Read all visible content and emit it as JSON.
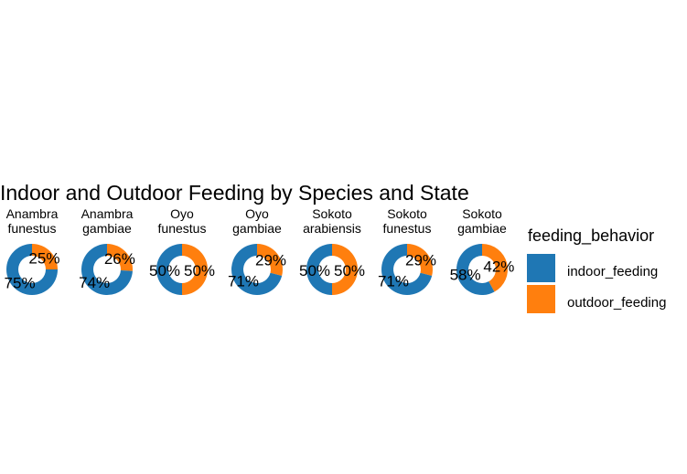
{
  "chart_data": {
    "type": "pie",
    "title": "Indoor and Outdoor Feeding by Species and State",
    "legend": {
      "title": "feeding_behavior",
      "position": "right",
      "entries": [
        "indoor_feeding",
        "outdoor_feeding"
      ]
    },
    "colors": {
      "indoor_feeding": "#1f77b4",
      "outdoor_feeding": "#ff7f0e"
    },
    "facets": [
      {
        "label": [
          "Anambra",
          "funestus"
        ],
        "indoor": 75,
        "outdoor": 25,
        "indoor_label": "75%",
        "outdoor_label": "25%"
      },
      {
        "label": [
          "Anambra",
          "gambiae"
        ],
        "indoor": 74,
        "outdoor": 26,
        "indoor_label": "74%",
        "outdoor_label": "26%"
      },
      {
        "label": [
          "Oyo",
          "funestus"
        ],
        "indoor": 50,
        "outdoor": 50,
        "indoor_label": "50%",
        "outdoor_label": "50%"
      },
      {
        "label": [
          "Oyo",
          "gambiae"
        ],
        "indoor": 71,
        "outdoor": 29,
        "indoor_label": "71%",
        "outdoor_label": "29%"
      },
      {
        "label": [
          "Sokoto",
          "arabiensis"
        ],
        "indoor": 50,
        "outdoor": 50,
        "indoor_label": "50%",
        "outdoor_label": "50%"
      },
      {
        "label": [
          "Sokoto",
          "funestus"
        ],
        "indoor": 71,
        "outdoor": 29,
        "indoor_label": "71%",
        "outdoor_label": "29%"
      },
      {
        "label": [
          "Sokoto",
          "gambiae"
        ],
        "indoor": 58,
        "outdoor": 42,
        "indoor_label": "58%",
        "outdoor_label": "42%"
      }
    ]
  }
}
